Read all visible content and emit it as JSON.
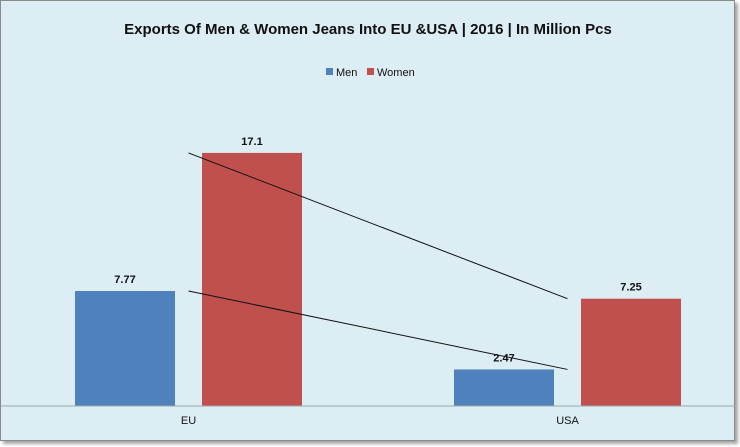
{
  "chart_data": {
    "type": "bar",
    "title": "Exports Of Men & Women Jeans Into EU &USA | 2016 | In Million Pcs",
    "categories": [
      "EU",
      "USA"
    ],
    "series": [
      {
        "name": "Men",
        "values": [
          7.77,
          2.47
        ],
        "color": "#4f81bd"
      },
      {
        "name": "Women",
        "values": [
          17.1,
          7.25
        ],
        "color": "#c0504d"
      }
    ],
    "ylim": [
      0,
      20
    ],
    "grid": false,
    "legend": "top-center",
    "data_labels": [
      "7.77",
      "2.47",
      "17.1",
      "7.25"
    ],
    "annotations": "two straight trend lines connecting EU bars to USA bars for each series"
  }
}
